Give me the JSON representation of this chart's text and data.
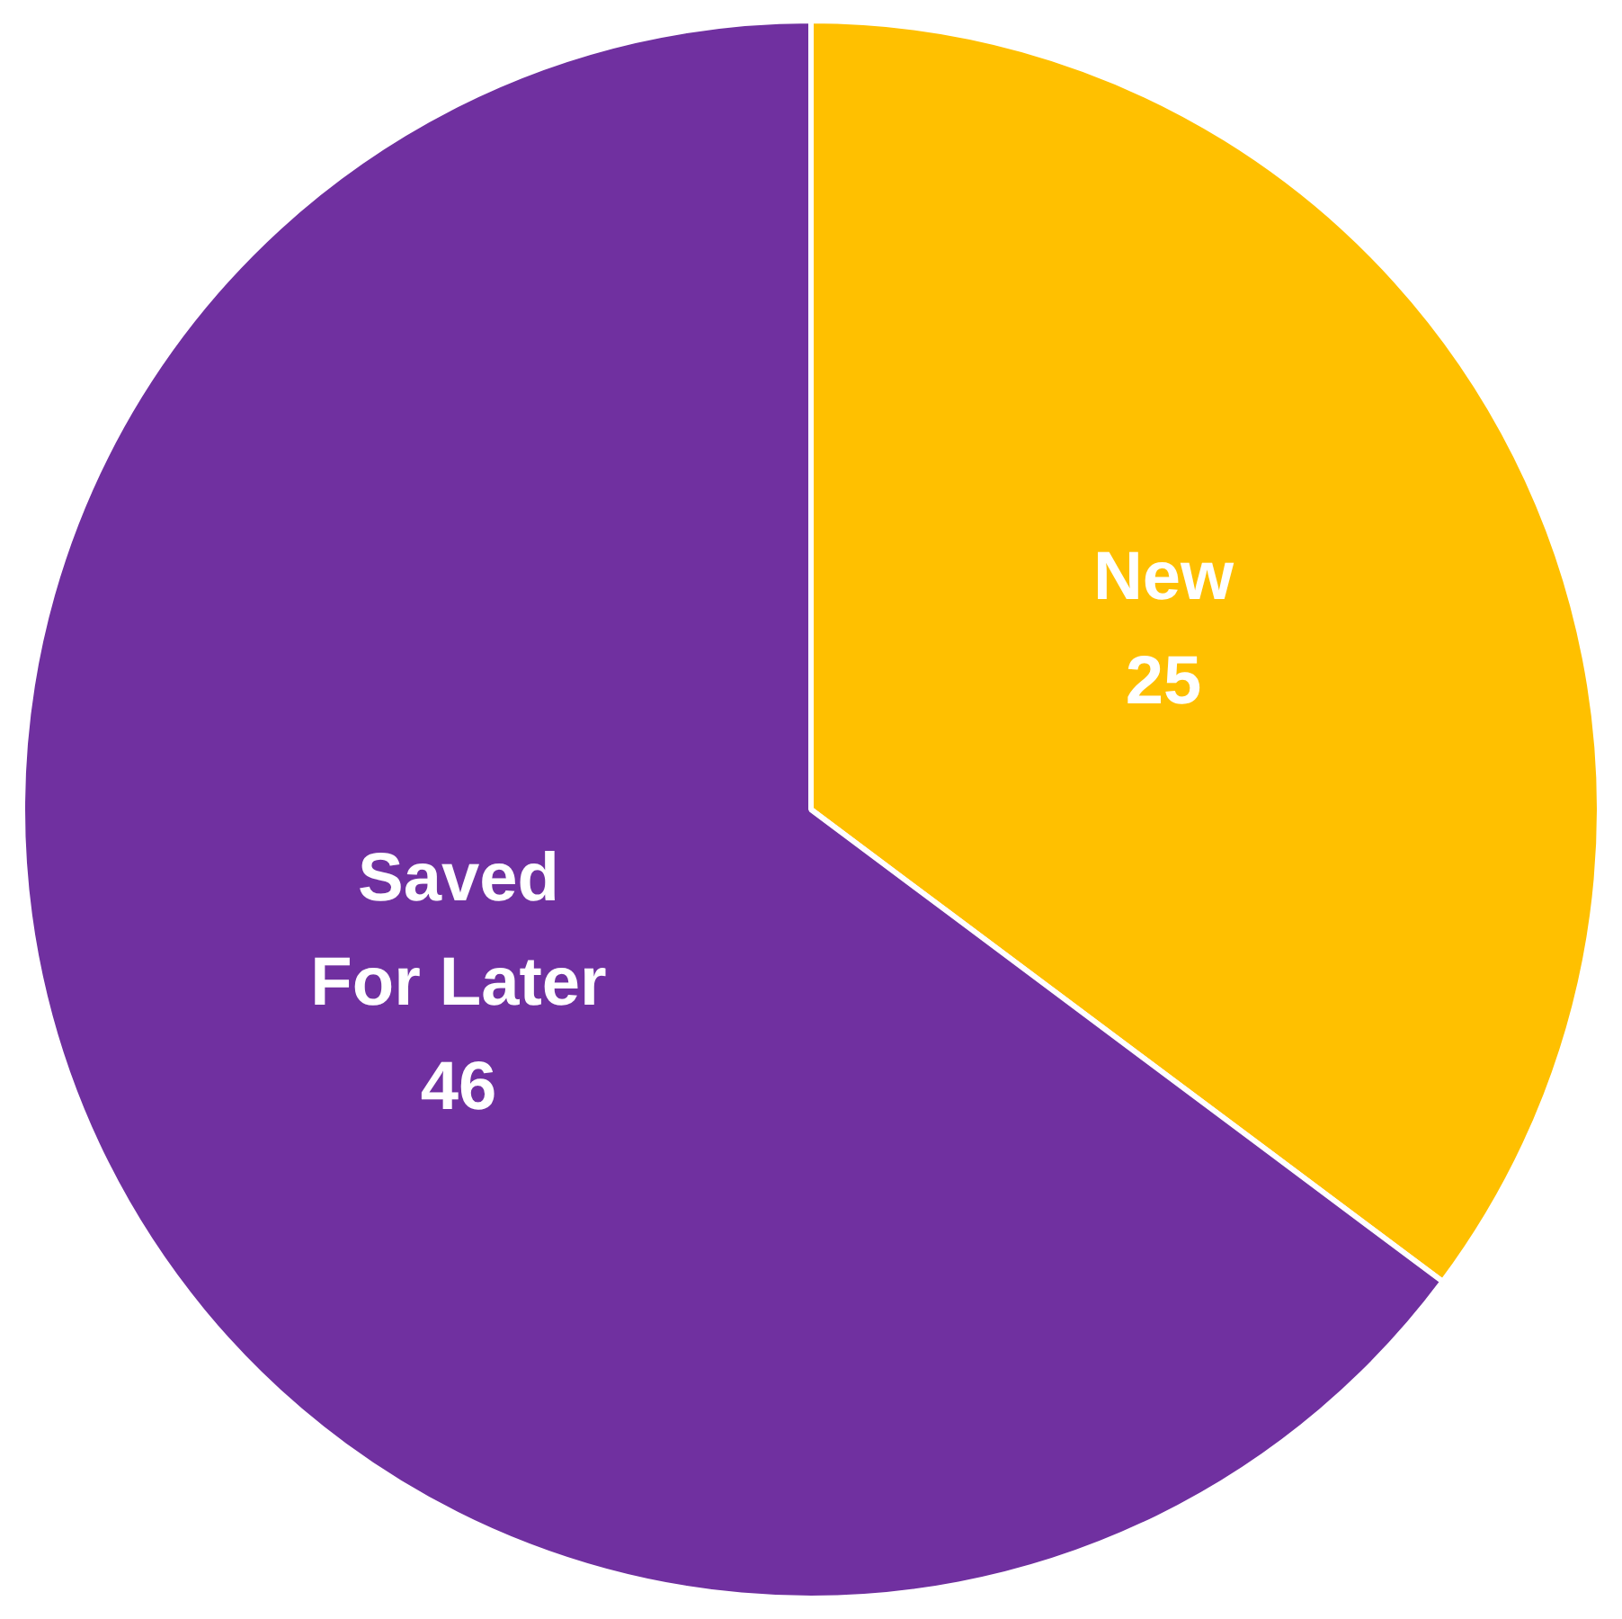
{
  "chart_data": {
    "type": "pie",
    "categories": [
      "New",
      "Saved For Later"
    ],
    "values": [
      25,
      46
    ],
    "colors": [
      "#ffc000",
      "#7030a0"
    ],
    "data_labels": true,
    "legend": false
  }
}
